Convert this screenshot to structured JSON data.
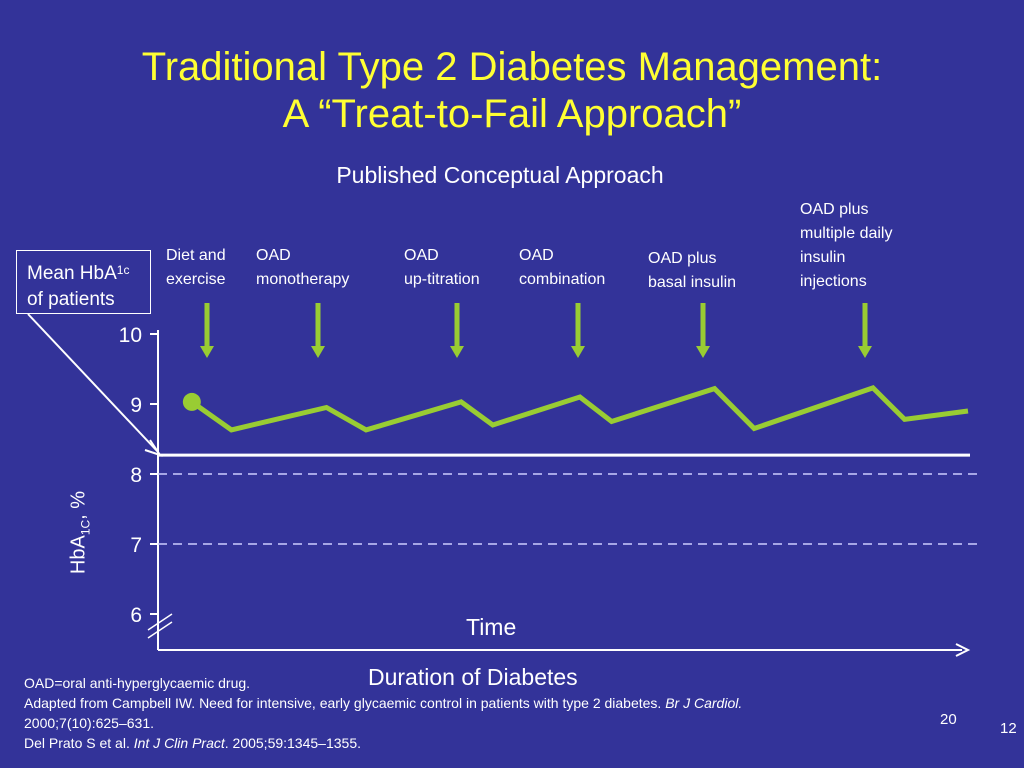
{
  "slide": {
    "title_line1": "Traditional Type 2 Diabetes Management:",
    "title_line2": "A “Treat-to-Fail Approach”",
    "subtitle": "Published Conceptual Approach",
    "legend_box_main": "Mean HbA",
    "legend_box_sub": "1c",
    "legend_box_line2": "of patients",
    "time_label": "Time",
    "duration_label": "Duration of Diabetes",
    "footnote_1": "OAD=oral anti-hyperglycaemic drug.",
    "footnote_2a": "Adapted from Campbell IW. Need for intensive, early glycaemic control in patients with type 2 diabetes. ",
    "footnote_2b": "Br J Cardiol.",
    "footnote_2c": "2000;7(10):625–631.",
    "footnote_3a": "Del Prato S et al. ",
    "footnote_3b": "Int J Clin Pract",
    "footnote_3c": ". 2005;59:1345–1355.",
    "page_number_inner": "20",
    "page_number_outer": "12"
  },
  "chart_data": {
    "type": "line",
    "ylabel_main": "HbA",
    "ylabel_sub": "1C",
    "ylabel_suffix": ", %",
    "ylim": [
      6,
      10
    ],
    "y_ticks": [
      "10",
      "9",
      "8",
      "7",
      "6"
    ],
    "x_axis_label": "Time",
    "series": [
      {
        "color": "#99cc33",
        "points": [
          [
            0.02,
            9.03
          ],
          [
            0.07,
            8.63
          ],
          [
            0.19,
            8.95
          ],
          [
            0.24,
            8.63
          ],
          [
            0.36,
            9.03
          ],
          [
            0.4,
            8.7
          ],
          [
            0.51,
            9.1
          ],
          [
            0.55,
            8.75
          ],
          [
            0.68,
            9.22
          ],
          [
            0.73,
            8.65
          ],
          [
            0.88,
            9.23
          ],
          [
            0.92,
            8.78
          ],
          [
            1.0,
            8.9
          ]
        ]
      }
    ],
    "reference_lines": [
      {
        "y": 8.27,
        "style": "solid",
        "color": "#ffffff"
      },
      {
        "y": 8.0,
        "style": "dashed",
        "color": "#ccccff"
      },
      {
        "y": 7.0,
        "style": "dashed",
        "color": "#ccccff"
      }
    ],
    "stages": [
      {
        "label": "Diet and\nexercise",
        "x": 0.06
      },
      {
        "label": "OAD\nmonotherapy",
        "x": 0.19
      },
      {
        "label": "OAD\nup-titration",
        "x": 0.36
      },
      {
        "label": "OAD\ncombination",
        "x": 0.5
      },
      {
        "label": "OAD plus\nbasal insulin",
        "x": 0.65
      },
      {
        "label": "OAD plus\nmultiple daily\ninsulin\ninjections",
        "x": 0.84
      }
    ],
    "colors": {
      "line": "#99cc33",
      "arrow": "#99cc33",
      "axis": "#ffffff",
      "title": "#ffff33",
      "background": "#333399"
    }
  }
}
